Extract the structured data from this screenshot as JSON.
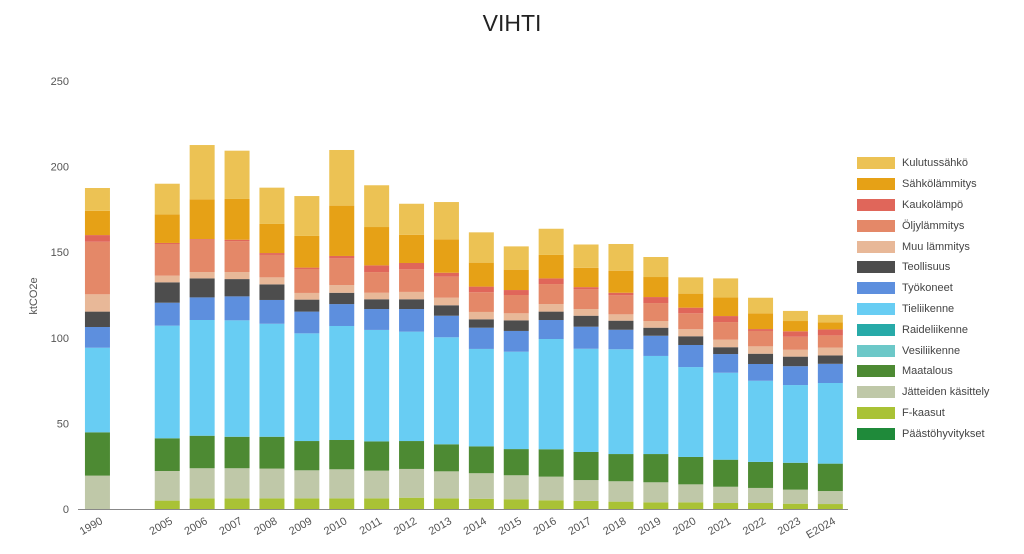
{
  "chart_data": {
    "type": "bar",
    "stacked": true,
    "title": "VIHTI",
    "xlabel": "",
    "ylabel": "ktCO2e",
    "ylim": [
      0,
      250
    ],
    "yticks": [
      0,
      50,
      100,
      150,
      200,
      250
    ],
    "grid": false,
    "legend_position": "right",
    "categories": [
      "1990",
      "2005",
      "2006",
      "2007",
      "2008",
      "2009",
      "2010",
      "2011",
      "2012",
      "2013",
      "2014",
      "2015",
      "2016",
      "2017",
      "2018",
      "2019",
      "2020",
      "2021",
      "2022",
      "2023",
      "E2024"
    ],
    "series": [
      {
        "name": "F-kaasut",
        "color": "#a9c235",
        "values": [
          0,
          4.9,
          6.2,
          6.2,
          6.2,
          6.2,
          6.2,
          6.2,
          6.6,
          6.2,
          6,
          5.7,
          5.1,
          4.7,
          4.3,
          3.9,
          3.9,
          3.5,
          3.5,
          3.1,
          2.9
        ]
      },
      {
        "name": "Jätteiden käsittely",
        "color": "#bfc8a8",
        "values": [
          19.5,
          17.3,
          17.6,
          17.6,
          17.4,
          16.4,
          17,
          16.2,
          16.8,
          15.8,
          14.9,
          14,
          13.8,
          12.2,
          11.9,
          11.7,
          10.5,
          9.5,
          8.8,
          8.2,
          7.6
        ]
      },
      {
        "name": "Maatalous",
        "color": "#4d8a33",
        "values": [
          25.3,
          19.1,
          19,
          18.4,
          18.6,
          17.1,
          17.1,
          17.1,
          16.3,
          15.8,
          15.7,
          15.3,
          16,
          16.4,
          15.9,
          16.5,
          16,
          15.8,
          15.2,
          15.7,
          16
        ]
      },
      {
        "name": "Vesiliikenne",
        "color": "#6cc8c8",
        "values": [
          0,
          0,
          0,
          0,
          0,
          0,
          0,
          0,
          0,
          0,
          0,
          0,
          0,
          0,
          0,
          0,
          0,
          0,
          0,
          0,
          0
        ]
      },
      {
        "name": "Raideliikenne",
        "color": "#27aaa8",
        "values": [
          0,
          0,
          0,
          0,
          0,
          0,
          0,
          0,
          0,
          0,
          0,
          0,
          0,
          0,
          0,
          0,
          0,
          0,
          0,
          0,
          0
        ]
      },
      {
        "name": "Tieliikenne",
        "color": "#68cdf3",
        "values": [
          49.4,
          65.8,
          67.6,
          68,
          66,
          62.9,
          66.6,
          65.1,
          63.9,
          62.5,
          56.9,
          56.9,
          64.4,
          60.3,
          61.2,
          57.3,
          52.5,
          50.8,
          47.4,
          45.4,
          47.1
        ]
      },
      {
        "name": "Työkoneet",
        "color": "#5d8fde",
        "values": [
          12.1,
          13.4,
          13.2,
          14,
          13.9,
          12.7,
          12.8,
          12.2,
          13.2,
          12.6,
          12.4,
          12.1,
          11.1,
          12.9,
          11.4,
          11.8,
          12.9,
          10.9,
          9.8,
          11,
          11.2
        ]
      },
      {
        "name": "Teollisuus",
        "color": "#4d4d4d",
        "values": [
          9,
          11.9,
          11.1,
          10.1,
          9.1,
          7,
          6.6,
          5.7,
          5.7,
          6.1,
          4.9,
          6.2,
          4.9,
          6.4,
          5.3,
          4.7,
          5.1,
          4,
          6,
          5.6,
          4.9
        ]
      },
      {
        "name": "Muu lämmitys",
        "color": "#e8b898",
        "values": [
          10.1,
          3.9,
          3.7,
          4.1,
          4.1,
          3.9,
          4.5,
          3.8,
          4.3,
          4.4,
          4.3,
          4.1,
          4.4,
          3.9,
          3.7,
          3.9,
          4.1,
          4.4,
          4.3,
          4,
          4.6
        ]
      },
      {
        "name": "Öljylämmitys",
        "color": "#e48868",
        "values": [
          30.7,
          18.5,
          18.9,
          18.1,
          13.1,
          14,
          15.6,
          12.1,
          13.2,
          12.3,
          11.5,
          10.7,
          11.7,
          11.5,
          11.1,
          10.5,
          9.3,
          10.3,
          9,
          7.6,
          7.1
        ]
      },
      {
        "name": "Kaukolämpö",
        "color": "#e0665a",
        "values": [
          3.9,
          0.6,
          0.4,
          0.8,
          1.1,
          0.8,
          1.4,
          3.9,
          3.7,
          2.3,
          3.3,
          2.9,
          3.3,
          1.3,
          1.5,
          3.5,
          3.3,
          3.5,
          1.1,
          3.2,
          3.5
        ]
      },
      {
        "name": "Sähkölämmitys",
        "color": "#e6a116",
        "values": [
          14.2,
          16.7,
          23.2,
          23.8,
          17,
          18.5,
          29.4,
          22.4,
          16.5,
          19.5,
          14,
          11.9,
          13.7,
          11.3,
          12.9,
          11.7,
          8.2,
          10.9,
          9.2,
          6,
          4.2
        ]
      },
      {
        "name": "Kulutussähkö",
        "color": "#ecc254",
        "values": [
          13.3,
          17.9,
          31.7,
          28.2,
          21.2,
          23.3,
          32.5,
          24.4,
          18.1,
          21.8,
          17.7,
          13.6,
          15.3,
          13.6,
          15.6,
          11.7,
          9.5,
          11.1,
          9.1,
          5.9,
          4.3
        ]
      },
      {
        "name": "Päästöhyvitykset",
        "color": "#1f8a3a",
        "values": [
          0,
          0,
          0,
          0,
          0,
          0,
          0,
          0,
          0,
          0,
          0,
          0,
          0,
          0,
          0,
          0,
          0,
          0,
          0,
          0,
          0
        ]
      }
    ],
    "legend_order": [
      "Kulutussähkö",
      "Sähkölämmitys",
      "Kaukolämpö",
      "Öljylämmitys",
      "Muu lämmitys",
      "Teollisuus",
      "Työkoneet",
      "Tieliikenne",
      "Raideliikenne",
      "Vesiliikenne",
      "Maatalous",
      "Jätteiden käsittely",
      "F-kaasut",
      "Päästöhyvitykset"
    ]
  }
}
